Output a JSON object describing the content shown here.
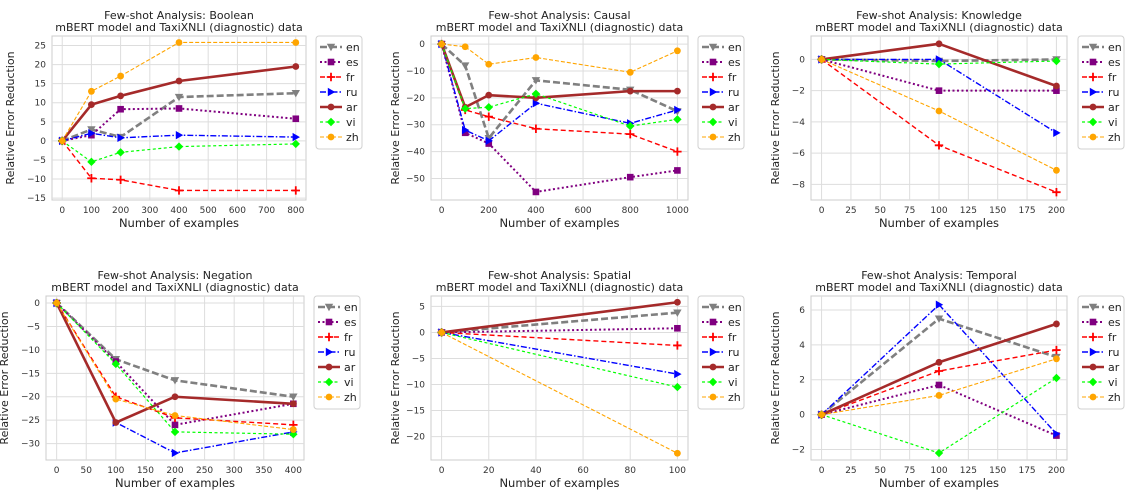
{
  "colors": {
    "en": "#808080",
    "es": "#800080",
    "fr": "#ff0000",
    "ru": "#0000ff",
    "ar": "#a52a2a",
    "vi": "#00ff00",
    "zh": "#ffa500",
    "grid": "#dddddd"
  },
  "chart_data": [
    {
      "type": "line",
      "title": "Few-shot Analysis: Boolean",
      "subtitle": "mBERT model and TaxiXNLI (diagnostic) data",
      "xlabel": "Number of examples",
      "ylabel": "Relative Error Reduction",
      "xlim": [
        -35,
        835
      ],
      "ylim": [
        -15.5,
        27.5
      ],
      "xticks": [
        0,
        100,
        200,
        300,
        400,
        500,
        600,
        700,
        800
      ],
      "yticks": [
        -15,
        -10,
        -5,
        0,
        5,
        10,
        15,
        20,
        25
      ],
      "x": [
        0,
        100,
        200,
        400,
        800
      ],
      "legend_position": "right outside",
      "grid": true,
      "series": [
        {
          "name": "en",
          "values": [
            0,
            3,
            1,
            11.5,
            12.5
          ]
        },
        {
          "name": "es",
          "values": [
            0,
            1.5,
            8.3,
            8.5,
            5.8
          ]
        },
        {
          "name": "fr",
          "values": [
            0,
            -9.8,
            -10.2,
            -13,
            -13
          ]
        },
        {
          "name": "ru",
          "values": [
            0,
            2,
            0.8,
            1.5,
            1
          ]
        },
        {
          "name": "ar",
          "values": [
            0,
            9.5,
            11.8,
            15.7,
            19.5
          ]
        },
        {
          "name": "vi",
          "values": [
            0,
            -5.5,
            -3,
            -1.5,
            -0.8
          ]
        },
        {
          "name": "zh",
          "values": [
            0,
            13,
            17,
            25.8,
            25.8
          ]
        }
      ]
    },
    {
      "type": "line",
      "title": "Few-shot Analysis: Causal",
      "subtitle": "mBERT model and TaxiXNLI (diagnostic) data",
      "xlabel": "Number of examples",
      "ylabel": "Relative Error Reduction",
      "xlim": [
        -45,
        1045
      ],
      "ylim": [
        -58,
        3
      ],
      "xticks": [
        0,
        200,
        400,
        600,
        800,
        1000
      ],
      "yticks": [
        -50,
        -40,
        -30,
        -20,
        -10,
        0
      ],
      "x": [
        0,
        100,
        200,
        400,
        800,
        1000
      ],
      "legend_position": "right outside",
      "grid": true,
      "series": [
        {
          "name": "en",
          "values": [
            0,
            -8,
            -35,
            -13.5,
            -17,
            -25
          ]
        },
        {
          "name": "es",
          "values": [
            0,
            -33,
            -37,
            -55,
            -49.5,
            -47
          ]
        },
        {
          "name": "fr",
          "values": [
            0,
            -24.5,
            -27,
            -31.5,
            -33.5,
            -40
          ]
        },
        {
          "name": "ru",
          "values": [
            0,
            -32,
            -36,
            -22,
            -29.5,
            -24.5
          ]
        },
        {
          "name": "ar",
          "values": [
            0,
            -23.5,
            -19,
            -20,
            -17.5,
            -17.5
          ]
        },
        {
          "name": "vi",
          "values": [
            0,
            -24,
            -23.5,
            -18.5,
            -30.5,
            -28
          ]
        },
        {
          "name": "zh",
          "values": [
            0,
            -1,
            -7.5,
            -5,
            -10.5,
            -2.5
          ]
        }
      ]
    },
    {
      "type": "line",
      "title": "Few-shot Analysis: Knowledge",
      "subtitle": "mBERT model and TaxiXNLI (diagnostic) data",
      "xlabel": "Number of examples",
      "ylabel": "Relative Error Reduction",
      "xlim": [
        -9,
        209
      ],
      "ylim": [
        -9,
        1.5
      ],
      "xticks": [
        0,
        25,
        50,
        75,
        100,
        125,
        150,
        175,
        200
      ],
      "yticks": [
        -8,
        -6,
        -4,
        -2,
        0
      ],
      "x": [
        0,
        100,
        200
      ],
      "legend_position": "right outside",
      "grid": true,
      "series": [
        {
          "name": "en",
          "values": [
            0,
            -0.1,
            0
          ]
        },
        {
          "name": "es",
          "values": [
            0,
            -2,
            -2
          ]
        },
        {
          "name": "fr",
          "values": [
            0,
            -5.5,
            -8.5
          ]
        },
        {
          "name": "ru",
          "values": [
            0,
            0,
            -4.7
          ]
        },
        {
          "name": "ar",
          "values": [
            0,
            1,
            -1.7
          ]
        },
        {
          "name": "vi",
          "values": [
            0,
            -0.3,
            -0.1
          ]
        },
        {
          "name": "zh",
          "values": [
            0,
            -3.3,
            -7.1
          ]
        }
      ]
    },
    {
      "type": "line",
      "title": "Few-shot Analysis: Negation",
      "subtitle": "mBERT model and TaxiXNLI (diagnostic) data",
      "xlabel": "Number of examples",
      "ylabel": "Relative Error Reduction",
      "xlim": [
        -18,
        418
      ],
      "ylim": [
        -33.5,
        1.5
      ],
      "xticks": [
        0,
        50,
        100,
        150,
        200,
        250,
        300,
        350,
        400
      ],
      "yticks": [
        -30,
        -25,
        -20,
        -15,
        -10,
        -5,
        0
      ],
      "x": [
        0,
        100,
        200,
        400
      ],
      "legend_position": "right outside",
      "grid": true,
      "series": [
        {
          "name": "en",
          "values": [
            0,
            -12,
            -16.5,
            -20
          ]
        },
        {
          "name": "es",
          "values": [
            0,
            -12.5,
            -26,
            -21.5
          ]
        },
        {
          "name": "fr",
          "values": [
            0,
            -20,
            -24.5,
            -26
          ]
        },
        {
          "name": "ru",
          "values": [
            0,
            -25.5,
            -32,
            -27.5
          ]
        },
        {
          "name": "ar",
          "values": [
            0,
            -25.5,
            -20,
            -21.5
          ]
        },
        {
          "name": "vi",
          "values": [
            0,
            -13,
            -27.5,
            -28
          ]
        },
        {
          "name": "zh",
          "values": [
            0,
            -20.5,
            -24,
            -27
          ]
        }
      ]
    },
    {
      "type": "line",
      "title": "Few-shot Analysis: Spatial",
      "subtitle": "mBERT model and TaxiXNLI (diagnostic) data",
      "xlabel": "Number of examples",
      "ylabel": "Relative Error Reduction",
      "xlim": [
        -4.5,
        104.5
      ],
      "ylim": [
        -24.5,
        7
      ],
      "xticks": [
        0,
        20,
        40,
        60,
        80,
        100
      ],
      "yticks": [
        -20,
        -15,
        -10,
        -5,
        0,
        5
      ],
      "x": [
        0,
        100
      ],
      "legend_position": "right outside",
      "grid": true,
      "series": [
        {
          "name": "en",
          "values": [
            0,
            3.8
          ]
        },
        {
          "name": "es",
          "values": [
            0,
            0.8
          ]
        },
        {
          "name": "fr",
          "values": [
            0,
            -2.5
          ]
        },
        {
          "name": "ru",
          "values": [
            0,
            -8
          ]
        },
        {
          "name": "ar",
          "values": [
            0,
            5.8
          ]
        },
        {
          "name": "vi",
          "values": [
            0,
            -10.5
          ]
        },
        {
          "name": "zh",
          "values": [
            0,
            -23.2
          ]
        }
      ]
    },
    {
      "type": "line",
      "title": "Few-shot Analysis: Temporal",
      "subtitle": "mBERT model and TaxiXNLI (diagnostic) data",
      "xlabel": "Number of examples",
      "ylabel": "Relative Error Reduction",
      "xlim": [
        -9,
        209
      ],
      "ylim": [
        -2.6,
        6.8
      ],
      "xticks": [
        0,
        25,
        50,
        75,
        100,
        125,
        150,
        175,
        200
      ],
      "yticks": [
        -2,
        0,
        2,
        4,
        6
      ],
      "x": [
        0,
        100,
        200
      ],
      "legend_position": "right outside",
      "grid": true,
      "series": [
        {
          "name": "en",
          "values": [
            0,
            5.5,
            3.3
          ]
        },
        {
          "name": "es",
          "values": [
            0,
            1.7,
            -1.2
          ]
        },
        {
          "name": "fr",
          "values": [
            0,
            2.5,
            3.7
          ]
        },
        {
          "name": "ru",
          "values": [
            0,
            6.3,
            -1.1
          ]
        },
        {
          "name": "ar",
          "values": [
            0,
            3,
            5.2
          ]
        },
        {
          "name": "vi",
          "values": [
            0,
            -2.2,
            2.1
          ]
        },
        {
          "name": "zh",
          "values": [
            0,
            1.1,
            3.2
          ]
        }
      ]
    }
  ]
}
